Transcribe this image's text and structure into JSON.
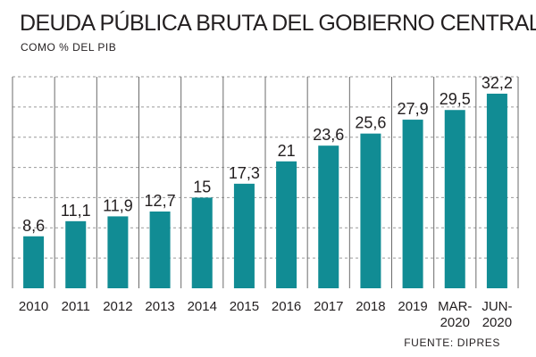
{
  "header": {
    "title": "DEUDA PÚBLICA BRUTA DEL GOBIERNO CENTRAL",
    "subtitle": "COMO % DEL PIB"
  },
  "footer": {
    "source": "FUENTE: DIPRES"
  },
  "colors": {
    "bar": "#118c94",
    "text": "#231f20",
    "grid": "#9a9a9a"
  },
  "chart_data": {
    "type": "bar",
    "title": "DEUDA PÚBLICA BRUTA DEL GOBIERNO CENTRAL",
    "subtitle": "COMO % DEL PIB",
    "categories": [
      [
        "2010"
      ],
      [
        "2011"
      ],
      [
        "2012"
      ],
      [
        "2013"
      ],
      [
        "2014"
      ],
      [
        "2015"
      ],
      [
        "2016"
      ],
      [
        "2017"
      ],
      [
        "2018"
      ],
      [
        "2019"
      ],
      [
        "MAR-",
        "2020"
      ],
      [
        "JUN-",
        "2020"
      ]
    ],
    "values": [
      8.6,
      11.1,
      11.9,
      12.7,
      15,
      17.3,
      21,
      23.6,
      25.6,
      27.9,
      29.5,
      32.2
    ],
    "value_labels": [
      "8,6",
      "11,1",
      "11,9",
      "12,7",
      "15",
      "17,3",
      "21",
      "23,6",
      "25,6",
      "27,9",
      "29,5",
      "32,2"
    ],
    "xlabel": "",
    "ylabel": "",
    "ylim": [
      0,
      35
    ],
    "grid": true,
    "source": "FUENTE: DIPRES"
  }
}
